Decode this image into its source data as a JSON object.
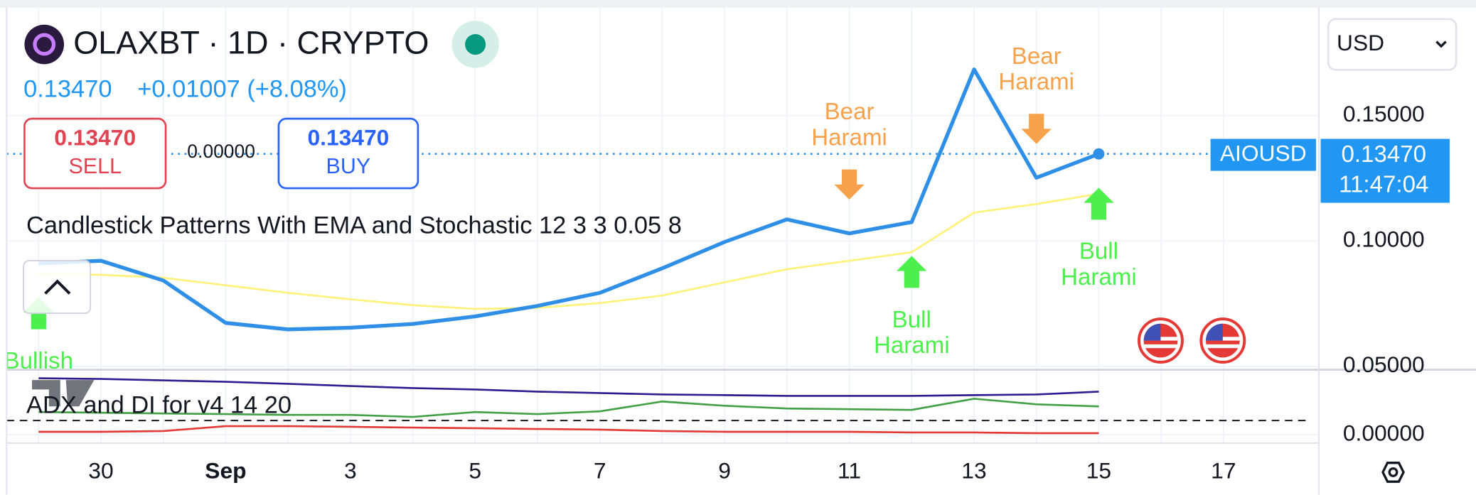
{
  "header": {
    "symbol": "OLAXBT · 1D · CRYPTO",
    "price": "0.13470",
    "change": "+0.01007 (+8.08%)",
    "sell_price": "0.13470",
    "sell": "SELL",
    "spread": "0.00000",
    "buy_price": "0.13470",
    "buy": "BUY",
    "currency": "USD",
    "price_tag": {
      "symbol": "AIOUSD",
      "price": "0.13470",
      "countdown": "11:47:04"
    }
  },
  "chart_data": [
    {
      "type": "line",
      "indicator": "Candlestick Patterns With EMA and Stochastic 12 3 3 0.05 8",
      "categories": [
        null,
        "30",
        null,
        "Sep",
        null,
        "3",
        null,
        "5",
        null,
        "7",
        null,
        "9",
        null,
        "11",
        null,
        "13",
        null,
        "15",
        null,
        "17"
      ],
      "series": [
        {
          "color": "#2f8fe6",
          "values": [
            0.091,
            0.0921,
            0.0842,
            0.0673,
            0.0647,
            0.0654,
            0.0669,
            0.0699,
            0.0741,
            0.0793,
            0.0891,
            0.0996,
            0.1086,
            0.103,
            0.1075,
            0.1684,
            0.1252,
            0.1347,
            null,
            null
          ]
        },
        {
          "color": "#fff27a",
          "values": [
            0.0868,
            0.0865,
            0.0853,
            0.0823,
            0.0793,
            0.0767,
            0.0744,
            0.0729,
            0.0733,
            0.0752,
            0.0782,
            0.0835,
            0.0887,
            0.0921,
            0.0955,
            0.1113,
            0.1147,
            0.1188,
            null,
            null
          ]
        }
      ],
      "patterns": [
        "Bullish",
        null,
        null,
        null,
        null,
        null,
        null,
        null,
        null,
        null,
        null,
        null,
        null,
        "Bear Harami",
        "Bull Harami",
        null,
        "Bear Harami",
        "Bull Harami",
        null,
        null
      ],
      "ylim": [
        0.049,
        0.193
      ],
      "yticks": [
        {
          "value": 0.05,
          "label": "0.05000"
        },
        {
          "value": 0.1,
          "label": "0.10000"
        },
        {
          "value": 0.15,
          "label": "0.15000"
        }
      ],
      "grid": true
    },
    {
      "type": "line",
      "indicator": "ADX and DI for v4 14 20",
      "series": [
        {
          "color": "#311b92",
          "values": [
            80,
            79,
            77,
            75,
            72,
            69,
            66,
            64,
            61,
            59,
            57,
            56,
            55,
            55,
            55,
            56,
            57,
            61,
            null,
            null
          ]
        },
        {
          "color": "#43a047",
          "values": [
            32,
            31,
            30,
            29,
            28,
            28,
            25,
            32,
            29,
            33,
            47,
            41,
            37,
            36,
            35,
            51,
            43,
            40,
            null,
            null
          ]
        },
        {
          "color": "#e53935",
          "values": [
            4,
            4,
            5,
            12,
            12,
            11,
            10,
            9,
            8,
            7,
            5,
            4,
            4,
            4,
            3,
            3,
            2,
            2,
            null,
            null
          ]
        }
      ],
      "hline": 20,
      "ylim": [
        -10.7,
        90.7
      ],
      "yticks": [
        {
          "value": 0,
          "label": "0.00000"
        }
      ],
      "grid": true
    }
  ]
}
